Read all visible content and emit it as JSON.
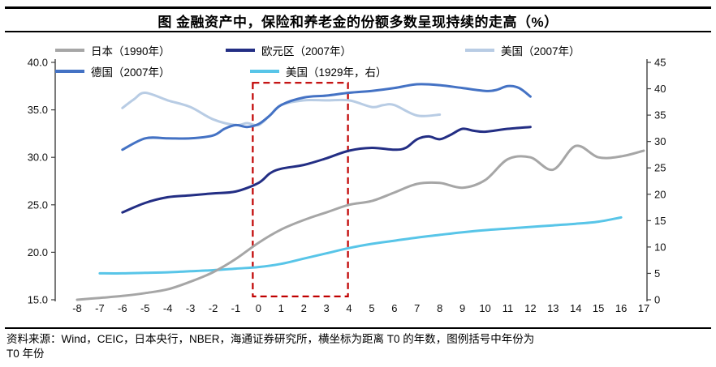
{
  "title": "图 金融资产中，保险和养老金的份额多数呈现持续的走高（%）",
  "footer": {
    "line1": "资料来源：Wind，CEIC，日本央行，NBER，海通证券研究所，横坐标为距离 T0 的年数，图例括号中年份为",
    "line2": "T0 年份"
  },
  "chart_data": {
    "type": "line",
    "title": "金融资产中，保险和养老金的份额多数呈现持续的走高（%）",
    "xlabel": "距离 T0 的年数",
    "legend_position": "top",
    "grid": false,
    "x_ticks": [
      -8,
      -7,
      -6,
      -5,
      -4,
      -3,
      -2,
      -1,
      0,
      1,
      2,
      3,
      4,
      5,
      6,
      7,
      8,
      9,
      10,
      11,
      12,
      13,
      14,
      15,
      16,
      17
    ],
    "left_ylim": [
      15,
      40
    ],
    "left_tick_values": [
      15,
      20,
      25,
      30,
      35,
      40
    ],
    "left_tick_labels": [
      "15.0",
      "20.0",
      "25.0",
      "30.0",
      "35.0",
      "40.0"
    ],
    "right_ylim": [
      0,
      45
    ],
    "right_tick_values": [
      0,
      5,
      10,
      15,
      20,
      25,
      30,
      35,
      40,
      45
    ],
    "highlight_box": {
      "x0": -0.25,
      "x1": 3.95,
      "y0": 15.35,
      "y1": 37.85,
      "color": "#C00000"
    },
    "series": [
      {
        "key": "japan-1990",
        "name": "日本（1990年）",
        "color": "#A6A6A6",
        "axis": "left",
        "x": [
          -8,
          -7,
          -6,
          -5,
          -4,
          -3,
          -2,
          -1,
          0,
          1,
          2,
          3,
          4,
          5,
          6,
          7,
          8,
          9,
          10,
          11,
          12,
          13,
          14,
          15,
          16,
          17
        ],
        "y": [
          15.0,
          15.2,
          15.4,
          15.7,
          16.1,
          16.9,
          17.9,
          19.3,
          21.0,
          22.4,
          23.4,
          24.2,
          25.0,
          25.4,
          26.3,
          27.2,
          27.3,
          26.8,
          27.6,
          29.8,
          30.0,
          28.7,
          31.2,
          30.0,
          30.1,
          30.7
        ]
      },
      {
        "key": "eurozone-2007",
        "name": "欧元区（2007年）",
        "color": "#232E84",
        "axis": "left",
        "x": [
          -6,
          -5,
          -4,
          -3,
          -2,
          -1,
          0,
          0.5,
          1,
          2,
          3,
          4,
          5,
          6,
          6.5,
          7,
          7.5,
          8,
          8.5,
          9,
          9.5,
          10,
          11,
          12
        ],
        "y": [
          24.2,
          25.2,
          25.8,
          26.0,
          26.2,
          26.4,
          27.3,
          28.3,
          28.8,
          29.2,
          29.9,
          30.7,
          31.0,
          30.8,
          31.0,
          31.9,
          32.2,
          31.9,
          32.4,
          33.0,
          32.8,
          32.7,
          33.0,
          33.2
        ]
      },
      {
        "key": "us-2007",
        "name": "美国（2007年）",
        "color": "#B8CCE4",
        "axis": "left",
        "x": [
          -6,
          -5.5,
          -5,
          -4,
          -3,
          -2,
          -1,
          -0.5,
          0,
          0.5,
          1,
          2,
          3,
          4,
          5,
          5.5,
          6,
          7,
          8
        ],
        "y": [
          35.2,
          36.1,
          36.8,
          36.0,
          35.3,
          34.0,
          33.4,
          33.6,
          33.4,
          34.4,
          35.5,
          36.0,
          36.0,
          36.0,
          35.3,
          35.5,
          35.5,
          34.4,
          34.5
        ]
      },
      {
        "key": "germany-2007",
        "name": "德国（2007年）",
        "color": "#4472C4",
        "axis": "left",
        "x": [
          -6,
          -5,
          -4,
          -3,
          -2,
          -1.5,
          -1,
          -0.5,
          0,
          0.5,
          1,
          2,
          3,
          4,
          5,
          6,
          7,
          8,
          9,
          10,
          10.5,
          11,
          11.5,
          12
        ],
        "y": [
          30.8,
          32.0,
          32.0,
          32.0,
          32.3,
          33.0,
          33.4,
          33.2,
          33.5,
          34.4,
          35.5,
          36.3,
          36.5,
          36.8,
          37.0,
          37.3,
          37.7,
          37.6,
          37.3,
          37.0,
          37.1,
          37.5,
          37.3,
          36.4
        ]
      },
      {
        "key": "us-1929-right",
        "name": "美国（1929年，右）",
        "color": "#58C5E8",
        "axis": "right",
        "x": [
          -7,
          -6,
          -5,
          -4,
          -3,
          -2,
          -1,
          0,
          1,
          2,
          3,
          4,
          5,
          6,
          7,
          8,
          9,
          10,
          11,
          12,
          13,
          14,
          15,
          16
        ],
        "y": [
          5.0,
          5.0,
          5.1,
          5.2,
          5.4,
          5.6,
          5.9,
          6.2,
          6.8,
          7.8,
          8.8,
          9.8,
          10.6,
          11.2,
          11.8,
          12.3,
          12.8,
          13.2,
          13.5,
          13.8,
          14.1,
          14.4,
          14.8,
          15.6
        ]
      }
    ]
  }
}
